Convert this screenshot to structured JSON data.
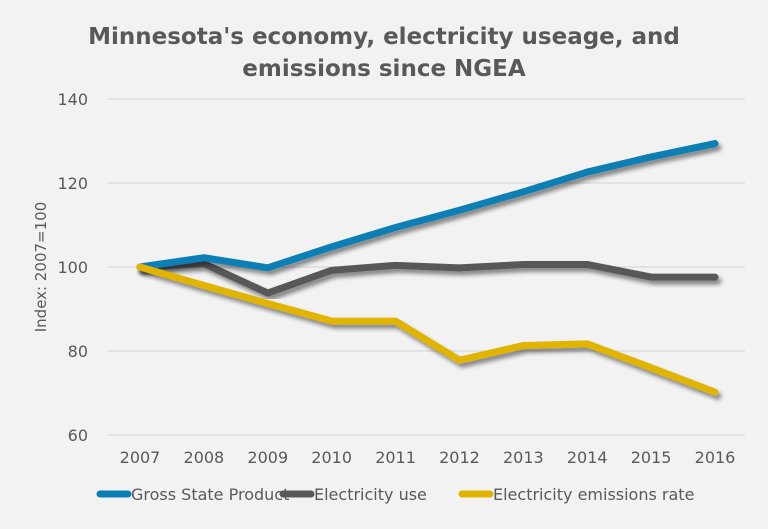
{
  "chart_data": {
    "type": "line",
    "title_lines": [
      "Minnesota's economy, electricity useage, and",
      "emissions since NGEA"
    ],
    "xlabel": "",
    "ylabel": "Index: 2007=100",
    "ylim": [
      60,
      140
    ],
    "yticks": [
      60,
      80,
      100,
      120,
      140
    ],
    "grid": true,
    "legend_position": "bottom",
    "x": [
      "2007",
      "2008",
      "2009",
      "2010",
      "2011",
      "2012",
      "2013",
      "2014",
      "2015",
      "2016"
    ],
    "series": [
      {
        "name": "Gross State Product",
        "color": "#0b7fb4",
        "values": [
          100,
          102.2,
          99.8,
          104.8,
          109.4,
          113.5,
          117.9,
          122.6,
          126.2,
          129.4
        ]
      },
      {
        "name": "Electricity use",
        "color": "#595959",
        "values": [
          100,
          100.8,
          93.8,
          99.2,
          100.4,
          99.8,
          100.6,
          100.6,
          97.6,
          97.6
        ]
      },
      {
        "name": "Electricity emissions rate",
        "color": "#e0b400",
        "values": [
          100,
          95.6,
          91.3,
          87.1,
          87.1,
          77.8,
          81.3,
          81.7,
          76.0,
          70.2
        ]
      }
    ]
  }
}
